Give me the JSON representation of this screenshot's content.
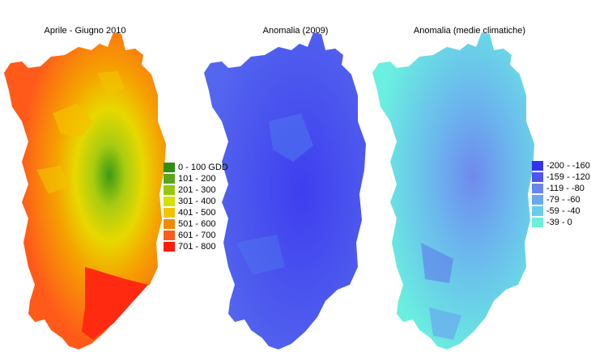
{
  "maps": [
    {
      "title": "Aprile - Giugno 2010",
      "legend": [
        {
          "label": "0 - 100 GDD",
          "color": "#2f8f10"
        },
        {
          "label": "101 - 200",
          "color": "#58a81a"
        },
        {
          "label": "201 - 300",
          "color": "#98c60e"
        },
        {
          "label": "301 - 400",
          "color": "#d4e000"
        },
        {
          "label": "401 - 500",
          "color": "#f2c400"
        },
        {
          "label": "501 - 600",
          "color": "#f28a00"
        },
        {
          "label": "601 - 700",
          "color": "#ff5a1a"
        },
        {
          "label": "701 - 800",
          "color": "#ff1a0a"
        }
      ]
    },
    {
      "title": "Anomalia (2009)"
    },
    {
      "title": "Anomalia (medie climatiche)",
      "legend": [
        {
          "label": "-200 - -160",
          "color": "#3333ee"
        },
        {
          "label": "-159 - -120",
          "color": "#4d55ee"
        },
        {
          "label": "-119 - -80",
          "color": "#6b85ee"
        },
        {
          "label": "-79 - -60",
          "color": "#6aa8ee"
        },
        {
          "label": "-59 - -40",
          "color": "#68ccee"
        },
        {
          "label": "-39 - 0",
          "color": "#6af0dd"
        }
      ]
    }
  ]
}
